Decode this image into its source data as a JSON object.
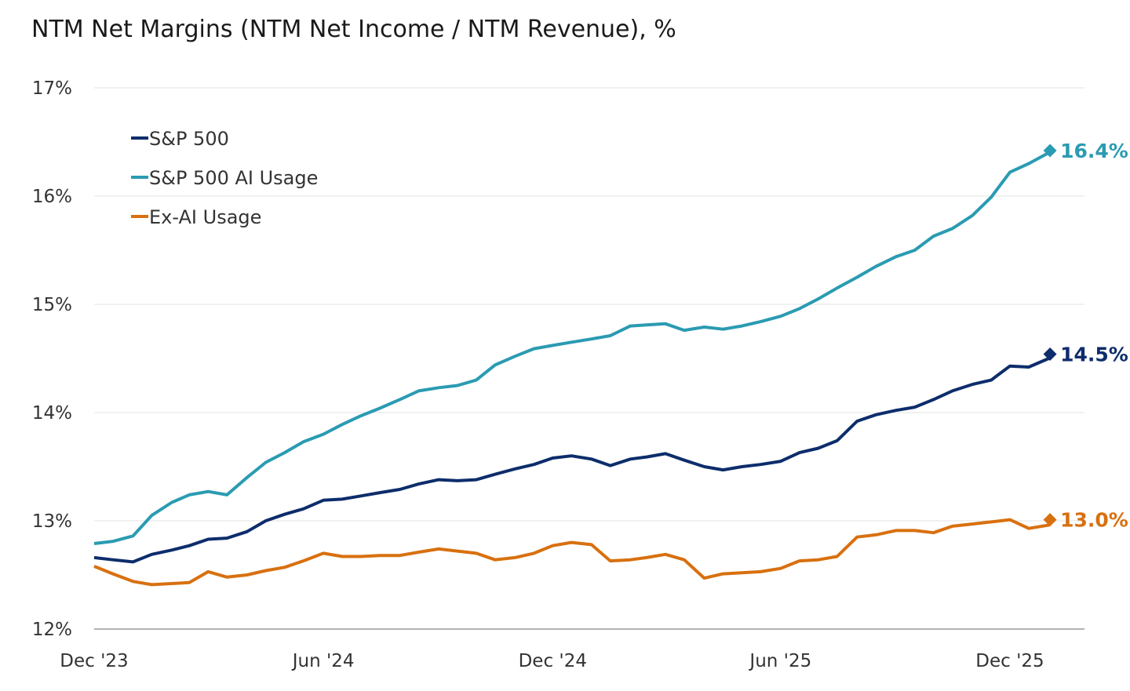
{
  "chart_data": {
    "type": "line",
    "title": "NTM Net Margins (NTM Net Income / NTM Revenue), %",
    "xlabel": "",
    "ylabel": "",
    "ylim": [
      12,
      17
    ],
    "yticks": [
      "12%",
      "13%",
      "14%",
      "15%",
      "16%",
      "17%"
    ],
    "xticks": [
      {
        "label": "Dec '23",
        "date": "2023-12-01"
      },
      {
        "label": "Jun '24",
        "date": "2024-06-01"
      },
      {
        "label": "Dec '24",
        "date": "2024-12-01"
      },
      {
        "label": "Jun '25",
        "date": "2025-06-01"
      },
      {
        "label": "Dec '25",
        "date": "2025-12-01"
      }
    ],
    "grid": "horizontal",
    "legend_position": "top-left",
    "x": [
      "2023-12-01",
      "2023-12-16",
      "2024-01-01",
      "2024-01-16",
      "2024-02-01",
      "2024-02-15",
      "2024-03-01",
      "2024-03-16",
      "2024-04-01",
      "2024-04-16",
      "2024-05-01",
      "2024-05-16",
      "2024-06-01",
      "2024-06-16",
      "2024-07-01",
      "2024-07-16",
      "2024-08-01",
      "2024-08-16",
      "2024-09-01",
      "2024-09-16",
      "2024-10-01",
      "2024-10-16",
      "2024-11-01",
      "2024-11-16",
      "2024-12-01",
      "2024-12-16",
      "2025-01-01",
      "2025-01-16",
      "2025-02-01",
      "2025-02-14",
      "2025-03-01",
      "2025-03-16",
      "2025-04-01",
      "2025-04-16",
      "2025-05-01",
      "2025-05-16",
      "2025-06-01",
      "2025-06-16",
      "2025-07-01",
      "2025-07-16",
      "2025-08-01",
      "2025-08-16",
      "2025-09-01",
      "2025-09-16",
      "2025-10-01",
      "2025-10-16",
      "2025-11-01",
      "2025-11-16",
      "2025-12-01",
      "2025-12-16",
      "2026-01-01",
      "2026-01-02"
    ],
    "series": [
      {
        "name": "S&P 500",
        "color": "#0d2d6b",
        "end_label": "14.5%",
        "values": [
          12.66,
          12.64,
          12.62,
          12.69,
          12.73,
          12.77,
          12.83,
          12.84,
          12.9,
          13.0,
          13.06,
          13.11,
          13.19,
          13.2,
          13.23,
          13.26,
          13.29,
          13.34,
          13.38,
          13.37,
          13.38,
          13.43,
          13.48,
          13.52,
          13.58,
          13.6,
          13.57,
          13.51,
          13.57,
          13.59,
          13.62,
          13.56,
          13.5,
          13.47,
          13.5,
          13.52,
          13.55,
          13.63,
          13.67,
          13.74,
          13.92,
          13.98,
          14.02,
          14.05,
          14.12,
          14.2,
          14.26,
          14.3,
          14.43,
          14.42,
          14.5,
          14.54
        ]
      },
      {
        "name": "S&P 500 AI Usage",
        "color": "#2a9bb2",
        "end_label": "16.4%",
        "values": [
          12.79,
          12.81,
          12.86,
          13.05,
          13.17,
          13.24,
          13.27,
          13.24,
          13.4,
          13.54,
          13.63,
          13.73,
          13.8,
          13.89,
          13.97,
          14.04,
          14.12,
          14.2,
          14.23,
          14.25,
          14.3,
          14.44,
          14.52,
          14.59,
          14.62,
          14.65,
          14.68,
          14.71,
          14.8,
          14.81,
          14.82,
          14.76,
          14.79,
          14.77,
          14.8,
          14.84,
          14.89,
          14.96,
          15.05,
          15.15,
          15.25,
          15.35,
          15.44,
          15.5,
          15.63,
          15.7,
          15.82,
          15.99,
          16.22,
          16.3,
          16.4,
          16.42
        ]
      },
      {
        "name": "Ex-AI Usage",
        "color": "#d8700f",
        "end_label": "13.0%",
        "values": [
          12.58,
          12.51,
          12.44,
          12.41,
          12.42,
          12.43,
          12.53,
          12.48,
          12.5,
          12.54,
          12.57,
          12.63,
          12.7,
          12.67,
          12.67,
          12.68,
          12.68,
          12.71,
          12.74,
          12.72,
          12.7,
          12.64,
          12.66,
          12.7,
          12.77,
          12.8,
          12.78,
          12.63,
          12.64,
          12.66,
          12.69,
          12.64,
          12.47,
          12.51,
          12.52,
          12.53,
          12.56,
          12.63,
          12.64,
          12.67,
          12.85,
          12.87,
          12.91,
          12.91,
          12.89,
          12.95,
          12.97,
          12.99,
          13.01,
          12.93,
          12.96,
          13.01
        ]
      }
    ]
  }
}
